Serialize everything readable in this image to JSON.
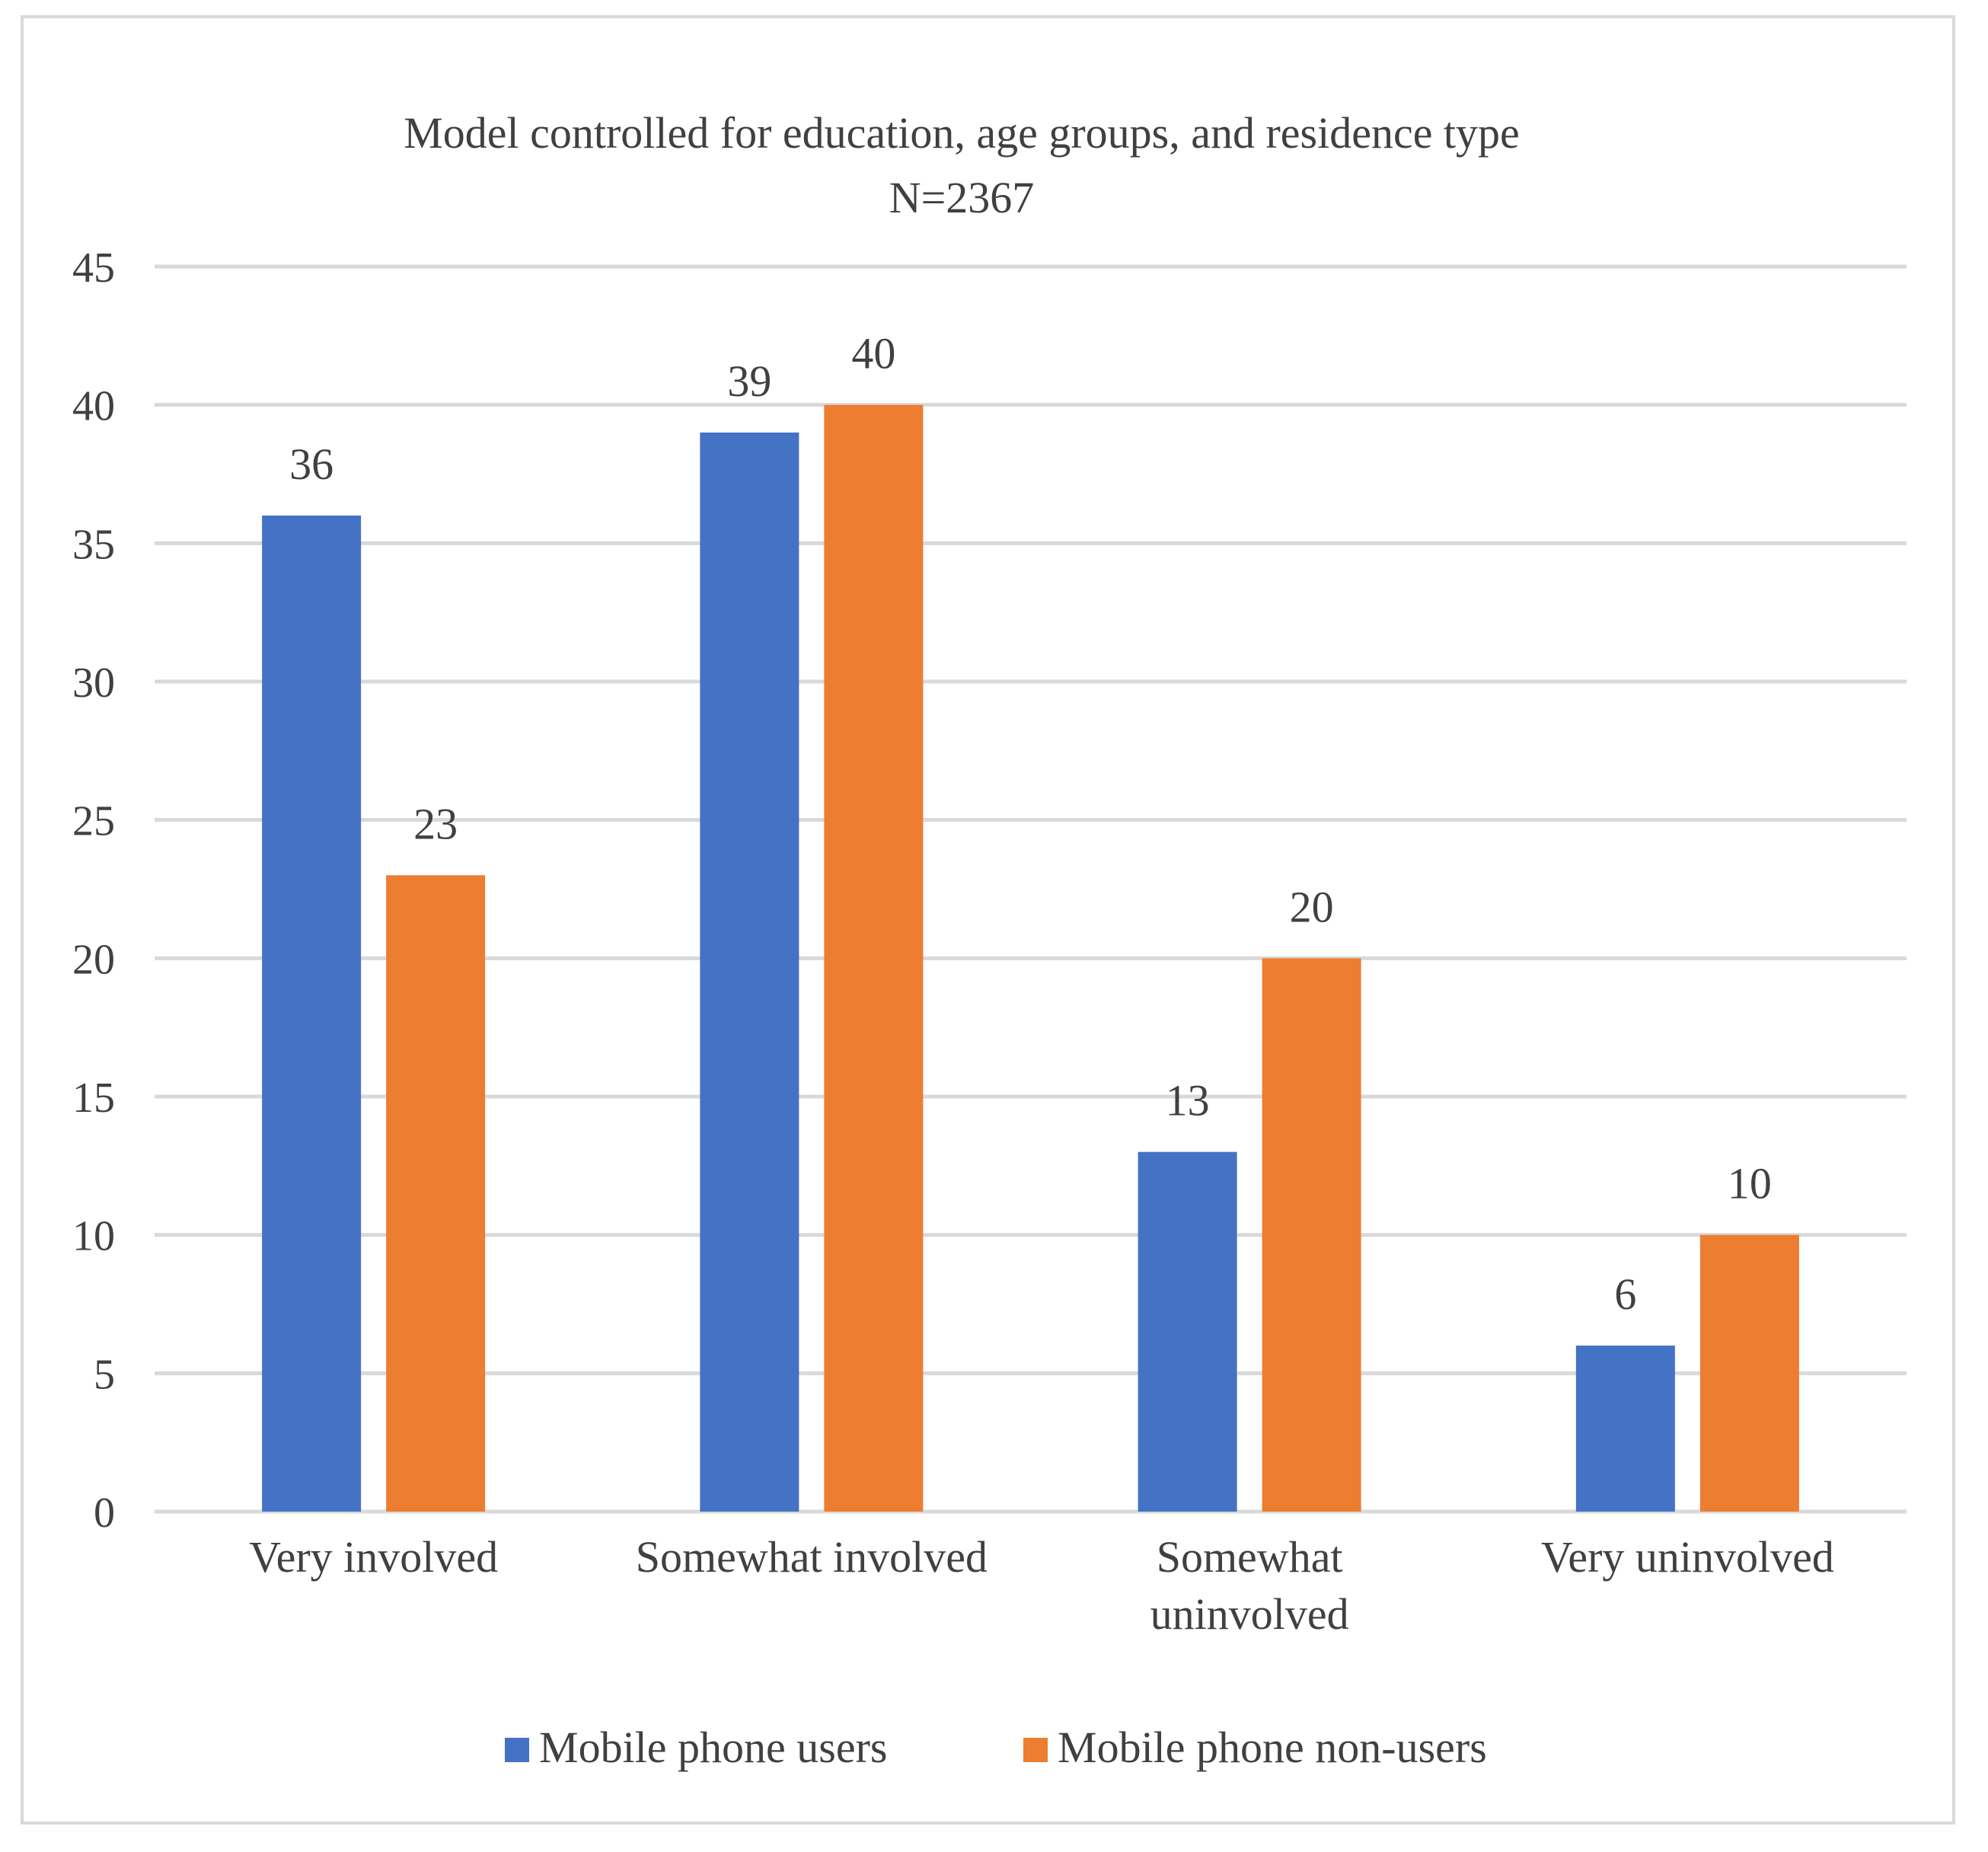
{
  "chart_data": {
    "type": "bar",
    "title": "Model controlled for education, age groups, and residence type",
    "subtitle": "N=2367",
    "xlabel": "",
    "ylabel": "",
    "ylim": [
      0,
      45
    ],
    "yticks": [
      0,
      5,
      10,
      15,
      20,
      25,
      30,
      35,
      40,
      45
    ],
    "grid": true,
    "legend_position": "bottom",
    "categories": [
      [
        "Very involved"
      ],
      [
        "Somewhat involved"
      ],
      [
        "Somewhat",
        "uninvolved"
      ],
      [
        "Very uninvolved"
      ]
    ],
    "series": [
      {
        "name": "Mobile phone users",
        "color": "#4472c4",
        "values": [
          36,
          39,
          13,
          6
        ]
      },
      {
        "name": "Mobile phone non-users",
        "color": "#ed7d31",
        "values": [
          23,
          40,
          20,
          10
        ]
      }
    ]
  }
}
